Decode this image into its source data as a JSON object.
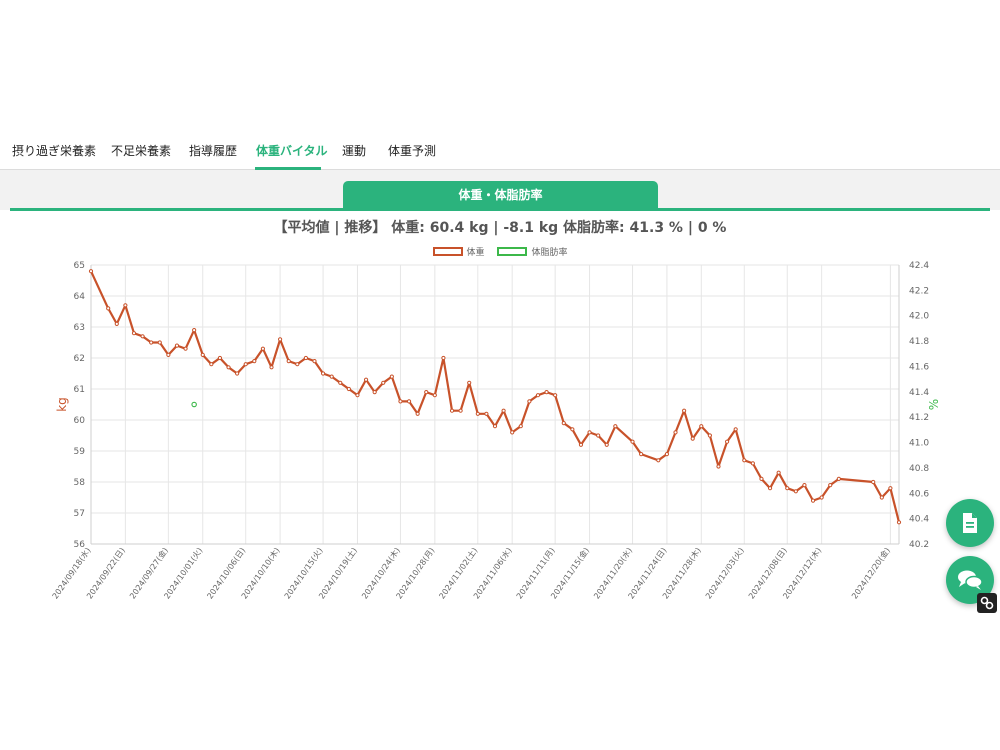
{
  "tabs": [
    {
      "label": "摂り過ぎ栄養素",
      "active": false
    },
    {
      "label": "不足栄養素",
      "active": false
    },
    {
      "label": "指導履歴",
      "active": false
    },
    {
      "label": "体重バイタル",
      "active": true
    },
    {
      "label": "運動",
      "active": false
    },
    {
      "label": "体重予測",
      "active": false
    }
  ],
  "chart_tab": {
    "label": "体重・体脂肪率"
  },
  "summary": "【平均値 | 推移】 体重: 60.4 kg | -8.1 kg 体脂肪率: 41.3 % | 0 %",
  "colors": {
    "accent": "#2bb37d",
    "weight_series": "#c8522a",
    "bodyfat_series": "#3cb84a"
  },
  "chart_data": {
    "type": "line",
    "title": "",
    "xlabel": "",
    "ylabel": "kg",
    "y2label": "%",
    "ylim": [
      56,
      65
    ],
    "y2lim": [
      40.2,
      42.4
    ],
    "yticks": [
      "65",
      "64",
      "63",
      "62",
      "61",
      "60",
      "59",
      "58",
      "57",
      "56"
    ],
    "y2ticks": [
      "42.4",
      "42.2",
      "42.0",
      "41.8",
      "41.6",
      "41.4",
      "41.2",
      "41.0",
      "40.8",
      "40.6",
      "40.4",
      "40.2"
    ],
    "grid": true,
    "legend_position": "top",
    "xticks": [
      "2024/09/18(水)",
      "2024/09/22(日)",
      "2024/09/27(金)",
      "2024/10/01(火)",
      "2024/10/06(日)",
      "2024/10/10(木)",
      "2024/10/15(火)",
      "2024/10/19(土)",
      "2024/10/24(木)",
      "2024/10/28(月)",
      "2024/11/02(土)",
      "2024/11/06(水)",
      "2024/11/11(月)",
      "2024/11/15(金)",
      "2024/11/20(水)",
      "2024/11/24(日)",
      "2024/11/28(木)",
      "2024/12/03(火)",
      "2024/12/08(日)",
      "2024/12/12(木)",
      "2024/12/20(金)"
    ],
    "series": [
      {
        "name": "体重",
        "axis": "left",
        "points": [
          [
            "2024-09-18",
            64.8
          ],
          [
            "2024-09-20",
            63.6
          ],
          [
            "2024-09-21",
            63.1
          ],
          [
            "2024-09-22",
            63.7
          ],
          [
            "2024-09-23",
            62.8
          ],
          [
            "2024-09-24",
            62.7
          ],
          [
            "2024-09-25",
            62.5
          ],
          [
            "2024-09-26",
            62.5
          ],
          [
            "2024-09-27",
            62.1
          ],
          [
            "2024-09-28",
            62.4
          ],
          [
            "2024-09-29",
            62.3
          ],
          [
            "2024-09-30",
            62.9
          ],
          [
            "2024-10-01",
            62.1
          ],
          [
            "2024-10-02",
            61.8
          ],
          [
            "2024-10-03",
            62.0
          ],
          [
            "2024-10-04",
            61.7
          ],
          [
            "2024-10-05",
            61.5
          ],
          [
            "2024-10-06",
            61.8
          ],
          [
            "2024-10-07",
            61.9
          ],
          [
            "2024-10-08",
            62.3
          ],
          [
            "2024-10-09",
            61.7
          ],
          [
            "2024-10-10",
            62.6
          ],
          [
            "2024-10-11",
            61.9
          ],
          [
            "2024-10-12",
            61.8
          ],
          [
            "2024-10-13",
            62.0
          ],
          [
            "2024-10-14",
            61.9
          ],
          [
            "2024-10-15",
            61.5
          ],
          [
            "2024-10-16",
            61.4
          ],
          [
            "2024-10-17",
            61.2
          ],
          [
            "2024-10-18",
            61.0
          ],
          [
            "2024-10-19",
            60.8
          ],
          [
            "2024-10-20",
            61.3
          ],
          [
            "2024-10-21",
            60.9
          ],
          [
            "2024-10-22",
            61.2
          ],
          [
            "2024-10-23",
            61.4
          ],
          [
            "2024-10-24",
            60.6
          ],
          [
            "2024-10-25",
            60.6
          ],
          [
            "2024-10-26",
            60.2
          ],
          [
            "2024-10-27",
            60.9
          ],
          [
            "2024-10-28",
            60.8
          ],
          [
            "2024-10-29",
            62.0
          ],
          [
            "2024-10-30",
            60.3
          ],
          [
            "2024-10-31",
            60.3
          ],
          [
            "2024-11-01",
            61.2
          ],
          [
            "2024-11-02",
            60.2
          ],
          [
            "2024-11-03",
            60.2
          ],
          [
            "2024-11-04",
            59.8
          ],
          [
            "2024-11-05",
            60.3
          ],
          [
            "2024-11-06",
            59.6
          ],
          [
            "2024-11-07",
            59.8
          ],
          [
            "2024-11-08",
            60.6
          ],
          [
            "2024-11-09",
            60.8
          ],
          [
            "2024-11-10",
            60.9
          ],
          [
            "2024-11-11",
            60.8
          ],
          [
            "2024-11-12",
            59.9
          ],
          [
            "2024-11-13",
            59.7
          ],
          [
            "2024-11-14",
            59.2
          ],
          [
            "2024-11-15",
            59.6
          ],
          [
            "2024-11-16",
            59.5
          ],
          [
            "2024-11-17",
            59.2
          ],
          [
            "2024-11-18",
            59.8
          ],
          [
            "2024-11-20",
            59.3
          ],
          [
            "2024-11-21",
            58.9
          ],
          [
            "2024-11-23",
            58.7
          ],
          [
            "2024-11-24",
            58.9
          ],
          [
            "2024-11-25",
            59.6
          ],
          [
            "2024-11-26",
            60.3
          ],
          [
            "2024-11-27",
            59.4
          ],
          [
            "2024-11-28",
            59.8
          ],
          [
            "2024-11-29",
            59.5
          ],
          [
            "2024-11-30",
            58.5
          ],
          [
            "2024-12-01",
            59.3
          ],
          [
            "2024-12-02",
            59.7
          ],
          [
            "2024-12-03",
            58.7
          ],
          [
            "2024-12-04",
            58.6
          ],
          [
            "2024-12-05",
            58.1
          ],
          [
            "2024-12-06",
            57.8
          ],
          [
            "2024-12-07",
            58.3
          ],
          [
            "2024-12-08",
            57.8
          ],
          [
            "2024-12-09",
            57.7
          ],
          [
            "2024-12-10",
            57.9
          ],
          [
            "2024-12-11",
            57.4
          ],
          [
            "2024-12-12",
            57.5
          ],
          [
            "2024-12-13",
            57.9
          ],
          [
            "2024-12-14",
            58.1
          ],
          [
            "2024-12-18",
            58.0
          ],
          [
            "2024-12-19",
            57.5
          ],
          [
            "2024-12-20",
            57.8
          ],
          [
            "2024-12-21",
            56.7
          ]
        ]
      },
      {
        "name": "体脂肪率",
        "axis": "right",
        "points": [
          [
            "2024-09-30",
            41.3
          ]
        ]
      }
    ]
  },
  "icons": {
    "fab_document": "document-icon",
    "fab_chat": "chat-icon",
    "badge": "link-icon"
  }
}
